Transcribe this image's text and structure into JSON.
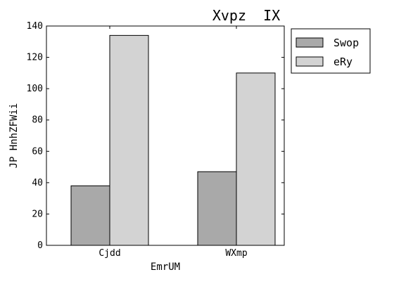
{
  "chart_data": {
    "type": "bar",
    "title": "Xvpz  IX",
    "xlabel": "EmrUM",
    "ylabel": "JP HnhZFWii",
    "categories": [
      "Cjdd",
      "WXmp"
    ],
    "series": [
      {
        "name": "Swop",
        "values": [
          38,
          47
        ],
        "color": "#a9a9a9"
      },
      {
        "name": "eRy",
        "values": [
          134,
          110
        ],
        "color": "#d3d3d3"
      }
    ],
    "ylim": [
      0,
      140
    ],
    "yticks": [
      0,
      20,
      40,
      60,
      80,
      100,
      120,
      140
    ],
    "grid": false,
    "legend": "outside-top-right"
  }
}
